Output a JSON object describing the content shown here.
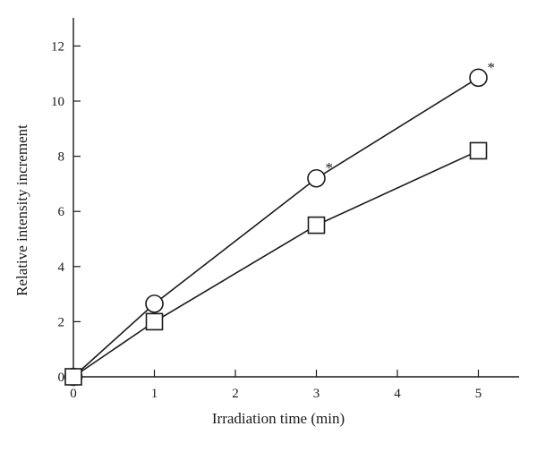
{
  "chart_data": {
    "type": "line",
    "title": "",
    "xlabel": "Irradiation time (min)",
    "ylabel": "Relative intensity increment",
    "xlim": [
      0,
      5.5
    ],
    "ylim": [
      0,
      13
    ],
    "xticks": [
      0,
      1,
      2,
      3,
      4,
      5
    ],
    "yticks": [
      0,
      2,
      4,
      6,
      8,
      10,
      12
    ],
    "grid": false,
    "legend": "none",
    "series": [
      {
        "marker": "circle",
        "x": [
          0,
          1,
          3,
          5
        ],
        "y": [
          0,
          2.65,
          7.2,
          10.85
        ]
      },
      {
        "marker": "square",
        "x": [
          0,
          1,
          3,
          5
        ],
        "y": [
          0,
          2.0,
          5.5,
          8.2
        ]
      }
    ],
    "annotations": [
      {
        "text": "*",
        "x": 3,
        "y": 7.2
      },
      {
        "text": "*",
        "x": 5,
        "y": 10.85
      }
    ],
    "colors": {
      "line": "#1a1a1a",
      "marker_fill": "#ffffff"
    }
  }
}
